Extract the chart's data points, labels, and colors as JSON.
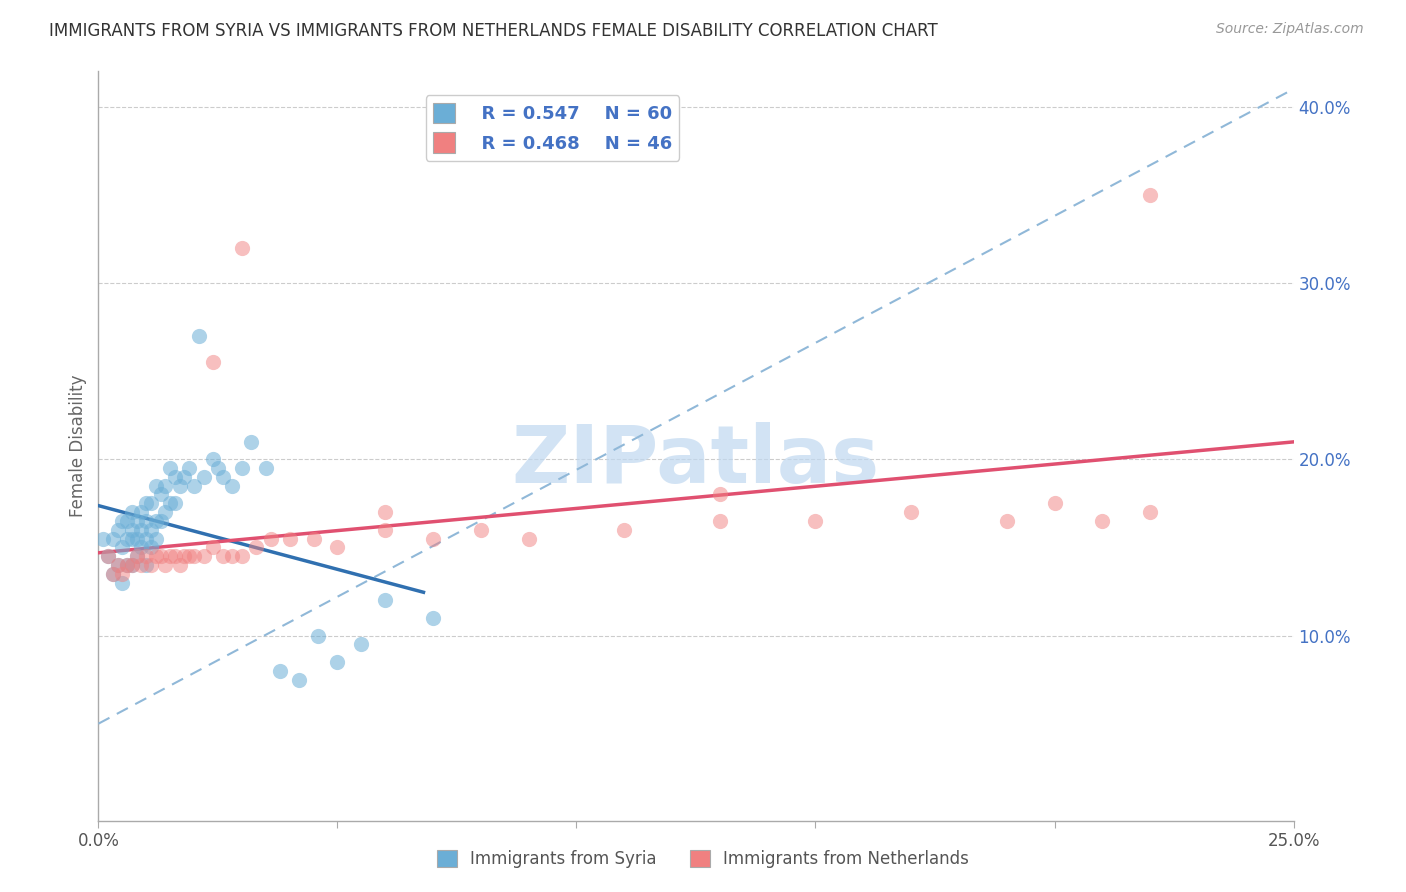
{
  "title": "IMMIGRANTS FROM SYRIA VS IMMIGRANTS FROM NETHERLANDS FEMALE DISABILITY CORRELATION CHART",
  "source": "Source: ZipAtlas.com",
  "ylabel": "Female Disability",
  "xlim": [
    0.0,
    0.25
  ],
  "ylim": [
    -0.005,
    0.42
  ],
  "color_syria": "#6BAED6",
  "color_netherlands": "#F08080",
  "color_syria_line": "#3070B0",
  "color_netherlands_line": "#E05070",
  "color_diag_line": "#90B8D8",
  "R_syria": 0.547,
  "N_syria": 60,
  "R_netherlands": 0.468,
  "N_netherlands": 46,
  "background_color": "#ffffff",
  "grid_color": "#cccccc",
  "axis_color": "#aaaaaa",
  "text_color_blue": "#4472C4",
  "watermark": "ZIPatlas",
  "watermark_color": "#C0D8F0",
  "syria_x": [
    0.001,
    0.002,
    0.003,
    0.003,
    0.004,
    0.004,
    0.005,
    0.005,
    0.005,
    0.006,
    0.006,
    0.006,
    0.007,
    0.007,
    0.007,
    0.007,
    0.008,
    0.008,
    0.008,
    0.009,
    0.009,
    0.009,
    0.01,
    0.01,
    0.01,
    0.01,
    0.011,
    0.011,
    0.011,
    0.012,
    0.012,
    0.012,
    0.013,
    0.013,
    0.014,
    0.014,
    0.015,
    0.015,
    0.016,
    0.016,
    0.017,
    0.018,
    0.019,
    0.02,
    0.021,
    0.022,
    0.024,
    0.025,
    0.026,
    0.028,
    0.03,
    0.032,
    0.035,
    0.038,
    0.042,
    0.046,
    0.05,
    0.055,
    0.06,
    0.07
  ],
  "syria_y": [
    0.155,
    0.145,
    0.135,
    0.155,
    0.14,
    0.16,
    0.13,
    0.15,
    0.165,
    0.14,
    0.155,
    0.165,
    0.14,
    0.155,
    0.16,
    0.17,
    0.145,
    0.155,
    0.165,
    0.15,
    0.16,
    0.17,
    0.14,
    0.155,
    0.165,
    0.175,
    0.15,
    0.16,
    0.175,
    0.155,
    0.165,
    0.185,
    0.165,
    0.18,
    0.17,
    0.185,
    0.175,
    0.195,
    0.175,
    0.19,
    0.185,
    0.19,
    0.195,
    0.185,
    0.27,
    0.19,
    0.2,
    0.195,
    0.19,
    0.185,
    0.195,
    0.21,
    0.195,
    0.08,
    0.075,
    0.1,
    0.085,
    0.095,
    0.12,
    0.11
  ],
  "netherlands_x": [
    0.002,
    0.003,
    0.004,
    0.005,
    0.006,
    0.007,
    0.008,
    0.009,
    0.01,
    0.011,
    0.012,
    0.013,
    0.014,
    0.015,
    0.016,
    0.017,
    0.018,
    0.019,
    0.02,
    0.022,
    0.024,
    0.026,
    0.028,
    0.03,
    0.033,
    0.036,
    0.04,
    0.045,
    0.05,
    0.06,
    0.07,
    0.08,
    0.09,
    0.11,
    0.13,
    0.15,
    0.17,
    0.19,
    0.2,
    0.21,
    0.22,
    0.024,
    0.03,
    0.06,
    0.13,
    0.22
  ],
  "netherlands_y": [
    0.145,
    0.135,
    0.14,
    0.135,
    0.14,
    0.14,
    0.145,
    0.14,
    0.145,
    0.14,
    0.145,
    0.145,
    0.14,
    0.145,
    0.145,
    0.14,
    0.145,
    0.145,
    0.145,
    0.145,
    0.15,
    0.145,
    0.145,
    0.145,
    0.15,
    0.155,
    0.155,
    0.155,
    0.15,
    0.16,
    0.155,
    0.16,
    0.155,
    0.16,
    0.165,
    0.165,
    0.17,
    0.165,
    0.175,
    0.165,
    0.17,
    0.255,
    0.32,
    0.17,
    0.18,
    0.35
  ]
}
